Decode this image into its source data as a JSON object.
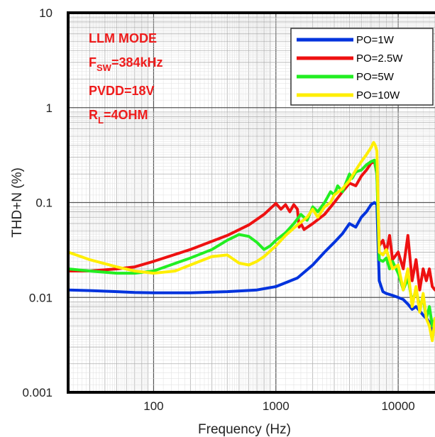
{
  "chart_data": {
    "type": "line",
    "title": "",
    "xlabel": "Frequency (Hz)",
    "ylabel": "THD+N (%)",
    "x_scale": "log",
    "y_scale": "log",
    "xlim": [
      20,
      20000
    ],
    "ylim": [
      0.001,
      10
    ],
    "x_ticks": [
      {
        "value": 100,
        "label": "100"
      },
      {
        "value": 1000,
        "label": "1000"
      },
      {
        "value": 10000,
        "label": "10000"
      }
    ],
    "y_ticks": [
      {
        "value": 10,
        "label": "10"
      },
      {
        "value": 1,
        "label": "1"
      },
      {
        "value": 0.1,
        "label": "0.1"
      },
      {
        "value": 0.01,
        "label": "0.01"
      },
      {
        "value": 0.001,
        "label": "0.001"
      }
    ],
    "grid": true,
    "legend_position": "top-right",
    "annotations": [
      {
        "text": "LLM MODE"
      },
      {
        "text": "F",
        "sub": "SW",
        "suffix": "=384kHz"
      },
      {
        "text": "PVDD=18V"
      },
      {
        "text": "R",
        "sub": "L",
        "suffix": "=4OHM"
      }
    ],
    "series": [
      {
        "name": "PO=1W",
        "color": "#0033dd",
        "x": [
          20,
          30,
          50,
          70,
          100,
          200,
          400,
          700,
          1000,
          1500,
          2000,
          2500,
          3000,
          3500,
          4000,
          4500,
          5000,
          5500,
          6000,
          6400,
          6700,
          7000,
          7500,
          8000,
          9000,
          10000,
          11000,
          12000,
          13000,
          14000,
          15000,
          16000,
          17000,
          18000,
          19000,
          20000
        ],
        "y": [
          0.012,
          0.0118,
          0.0115,
          0.0113,
          0.0112,
          0.0112,
          0.0115,
          0.012,
          0.013,
          0.016,
          0.022,
          0.03,
          0.038,
          0.047,
          0.06,
          0.055,
          0.07,
          0.08,
          0.095,
          0.1,
          0.095,
          0.015,
          0.0115,
          0.011,
          0.0105,
          0.01,
          0.0095,
          0.0085,
          0.0075,
          0.008,
          0.0072,
          0.0065,
          0.006,
          0.0055,
          0.0045,
          0.005
        ]
      },
      {
        "name": "PO=2.5W",
        "color": "#ee1111",
        "x": [
          20,
          30,
          50,
          70,
          100,
          200,
          400,
          600,
          800,
          1000,
          1100,
          1200,
          1300,
          1400,
          1500,
          1550,
          1600,
          1700,
          2000,
          2500,
          3000,
          3500,
          4000,
          4500,
          5000,
          5500,
          6000,
          6400,
          6700,
          7000,
          7500,
          8000,
          8500,
          9000,
          10000,
          11000,
          12000,
          13000,
          14000,
          15000,
          16000,
          17000,
          18000,
          19000,
          20000
        ],
        "y": [
          0.019,
          0.019,
          0.02,
          0.021,
          0.024,
          0.032,
          0.045,
          0.058,
          0.075,
          0.098,
          0.085,
          0.095,
          0.08,
          0.095,
          0.085,
          0.055,
          0.06,
          0.052,
          0.06,
          0.075,
          0.1,
          0.13,
          0.16,
          0.15,
          0.19,
          0.22,
          0.26,
          0.27,
          0.2,
          0.035,
          0.04,
          0.03,
          0.045,
          0.025,
          0.03,
          0.02,
          0.045,
          0.015,
          0.025,
          0.012,
          0.02,
          0.015,
          0.02,
          0.013,
          0.012
        ]
      },
      {
        "name": "PO=5W",
        "color": "#22ee22",
        "x": [
          20,
          30,
          50,
          70,
          100,
          200,
          300,
          400,
          500,
          600,
          700,
          800,
          900,
          1000,
          1200,
          1400,
          1600,
          1800,
          2000,
          2200,
          2500,
          2800,
          3000,
          3200,
          3500,
          3800,
          4000,
          4200,
          4500,
          5000,
          5500,
          6000,
          6400,
          6700,
          7000,
          7500,
          8000,
          8500,
          9000,
          10000,
          11000,
          12000,
          13000,
          14000,
          15000,
          16000,
          17000,
          18000,
          19000,
          20000
        ],
        "y": [
          0.02,
          0.019,
          0.018,
          0.018,
          0.019,
          0.026,
          0.032,
          0.04,
          0.046,
          0.044,
          0.038,
          0.032,
          0.035,
          0.04,
          0.048,
          0.06,
          0.075,
          0.065,
          0.09,
          0.08,
          0.1,
          0.13,
          0.12,
          0.15,
          0.13,
          0.17,
          0.2,
          0.18,
          0.21,
          0.22,
          0.25,
          0.27,
          0.28,
          0.2,
          0.025,
          0.024,
          0.026,
          0.02,
          0.024,
          0.018,
          0.012,
          0.016,
          0.009,
          0.012,
          0.008,
          0.01,
          0.006,
          0.008,
          0.005,
          0.006
        ]
      },
      {
        "name": "PO=10W",
        "color": "#ffee00",
        "x": [
          20,
          30,
          50,
          70,
          100,
          150,
          200,
          300,
          400,
          500,
          600,
          700,
          800,
          1000,
          1200,
          1500,
          1800,
          2000,
          2200,
          2500,
          2800,
          3000,
          3500,
          4000,
          4500,
          5000,
          5500,
          6000,
          6300,
          6500,
          6700,
          7000,
          7500,
          8000,
          9000,
          10000,
          11000,
          12000,
          13000,
          14000,
          15000,
          16000,
          17000,
          18000,
          19000,
          20000
        ],
        "y": [
          0.03,
          0.025,
          0.021,
          0.019,
          0.018,
          0.019,
          0.022,
          0.027,
          0.028,
          0.023,
          0.022,
          0.024,
          0.027,
          0.035,
          0.045,
          0.058,
          0.07,
          0.085,
          0.07,
          0.09,
          0.1,
          0.12,
          0.14,
          0.17,
          0.22,
          0.27,
          0.32,
          0.38,
          0.43,
          0.4,
          0.35,
          0.03,
          0.028,
          0.032,
          0.02,
          0.022,
          0.012,
          0.02,
          0.008,
          0.013,
          0.007,
          0.011,
          0.006,
          0.005,
          0.0035,
          0.006
        ]
      }
    ]
  }
}
